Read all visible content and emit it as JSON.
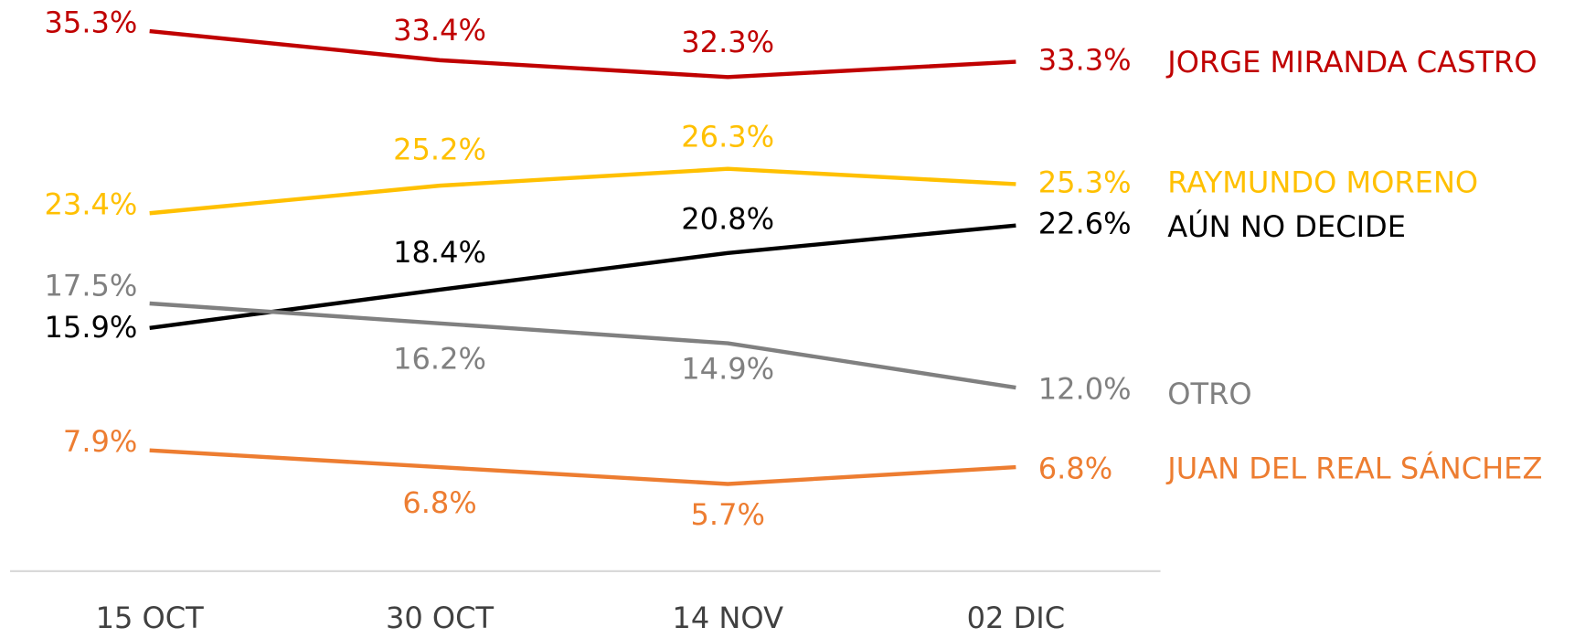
{
  "chart_data": {
    "type": "line",
    "categories": [
      "15 OCT",
      "30 OCT",
      "14 NOV",
      "02 DIC"
    ],
    "series": [
      {
        "name": "JORGE MIRANDA CASTRO",
        "color": "#c00000",
        "values": [
          35.3,
          33.4,
          32.3,
          33.3
        ],
        "value_labels": [
          "35.3%",
          "33.4%",
          "32.3%",
          "33.3%"
        ]
      },
      {
        "name": "RAYMUNDO MORENO",
        "color": "#ffc000",
        "values": [
          23.4,
          25.2,
          26.3,
          25.3
        ],
        "value_labels": [
          "23.4%",
          "25.2%",
          "26.3%",
          "25.3%"
        ]
      },
      {
        "name": "AÚN NO DECIDE",
        "color": "#000000",
        "values": [
          15.9,
          18.4,
          20.8,
          22.6
        ],
        "value_labels": [
          "15.9%",
          "18.4%",
          "20.8%",
          "22.6%"
        ]
      },
      {
        "name": "OTRO",
        "color": "#808080",
        "values": [
          17.5,
          16.2,
          14.9,
          12.0
        ],
        "value_labels": [
          "17.5%",
          "16.2%",
          "14.9%",
          "12.0%"
        ]
      },
      {
        "name": "JUAN DEL REAL SÁNCHEZ",
        "color": "#ed7d31",
        "values": [
          7.9,
          6.8,
          5.7,
          6.8
        ],
        "value_labels": [
          "7.9%",
          "6.8%",
          "5.7%",
          "6.8%"
        ]
      }
    ]
  }
}
